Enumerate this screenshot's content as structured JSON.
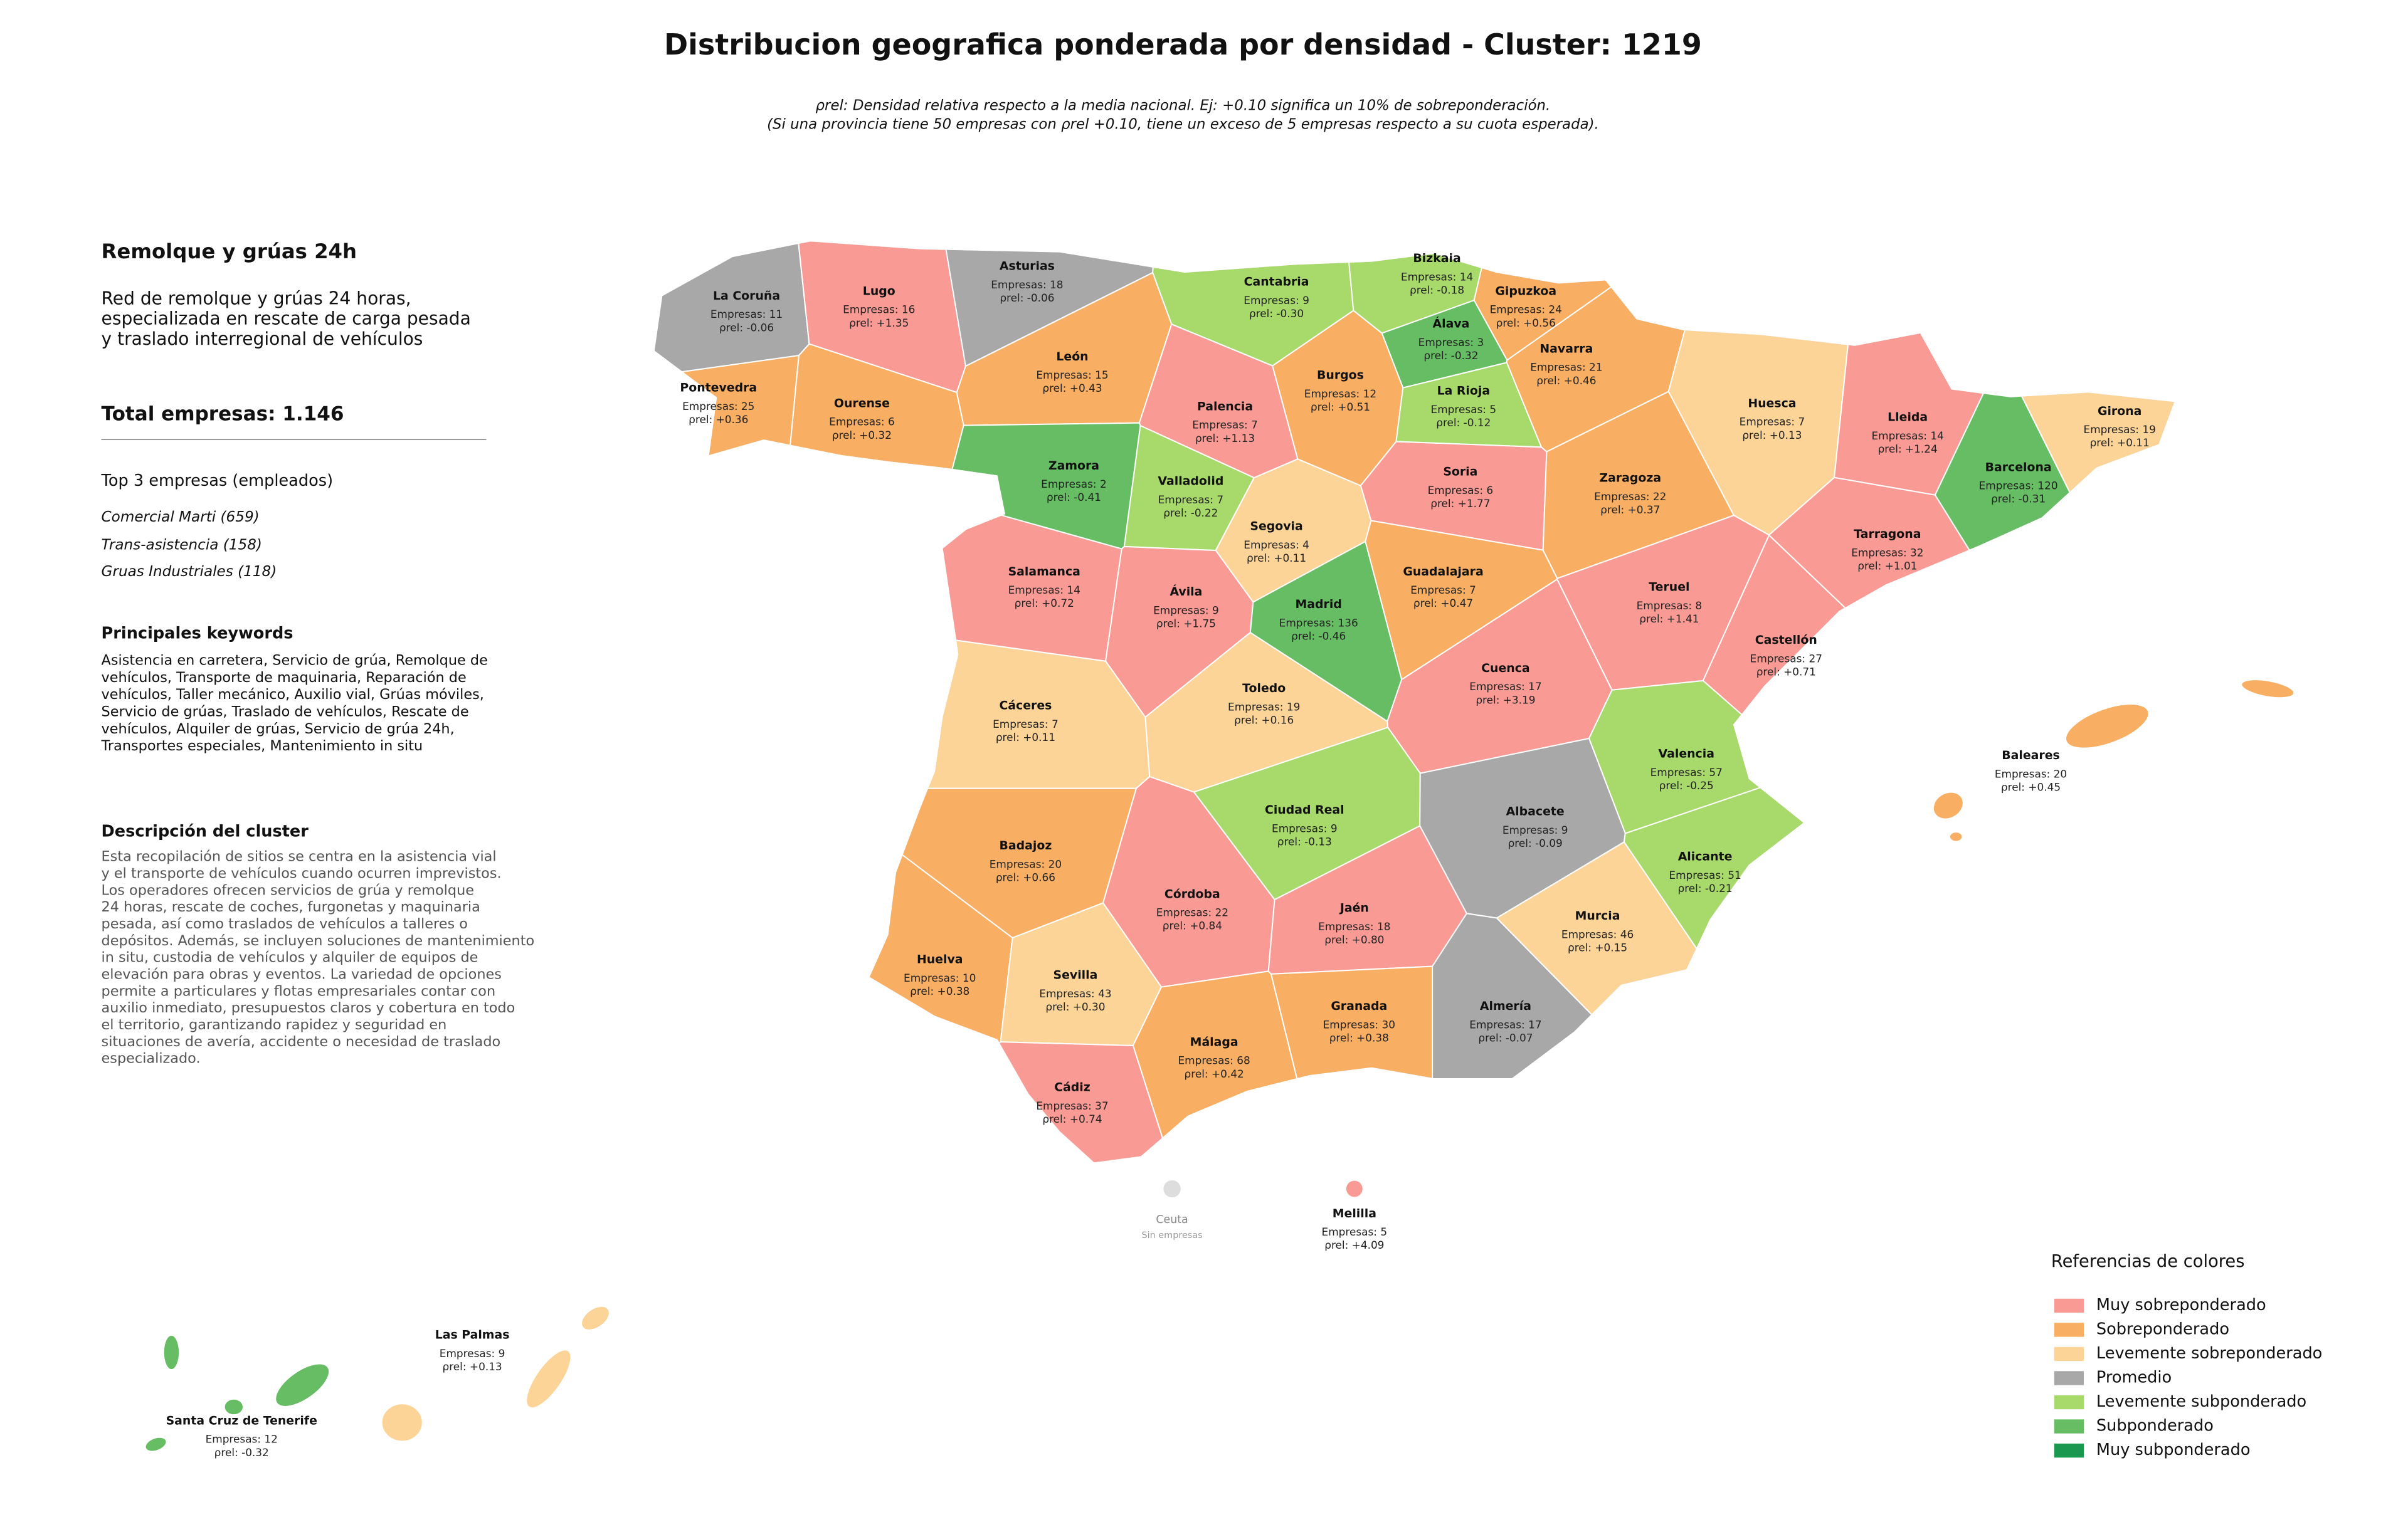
{
  "header": {
    "title": "Distribucion geografica ponderada por densidad - Cluster: 1219",
    "subtitle": [
      "ρrel: Densidad relativa respecto a la media nacional. Ej: +0.10 significa un 10% de sobreponderación.",
      "(Si una provincia tiene 50 empresas con ρrel +0.10, tiene un exceso de 5 empresas respecto a su cuota esperada)."
    ]
  },
  "panel": {
    "title": "Remolque y grúas 24h",
    "summary": [
      "Red de remolque y grúas 24 horas,",
      "especializada en rescate de carga pesada",
      "y traslado interregional de vehículos"
    ],
    "total": "Total empresas: 1.146",
    "top_heading": "Top 3 empresas (empleados)",
    "top": [
      "Comercial Marti (659)",
      "Trans-asistencia (158)",
      "Gruas Industriales (118)"
    ],
    "keywords_heading": "Principales keywords",
    "keywords": [
      "Asistencia en carretera, Servicio de grúa, Remolque de",
      "vehículos, Transporte de maquinaria, Reparación de",
      "vehículos, Taller mecánico, Auxilio vial, Grúas móviles,",
      "Servicio de grúas, Traslado de vehículos, Rescate de",
      "vehículos, Alquiler de grúas, Servicio de grúa 24h,",
      "Transportes especiales, Mantenimiento in situ"
    ],
    "description_heading": "Descripción del cluster",
    "description": [
      "Esta recopilación de sitios se centra en la asistencia vial",
      "y el transporte de vehículos cuando ocurren imprevistos.",
      "Los operadores ofrecen servicios de grúa y remolque",
      "24 horas, rescate de coches, furgonetas y maquinaria",
      "pesada, así como traslados de vehículos a talleres o",
      "depósitos. Además, se incluyen soluciones de mantenimiento",
      "in situ, custodia de vehículos y alquiler de equipos de",
      "elevación para obras y eventos. La variedad de opciones",
      "permite a particulares y flotas empresariales contar con",
      "auxilio inmediato, presupuestos claros y cobertura en todo",
      "el territorio, garantizando rapidez y seguridad en",
      "situaciones de avería, accidente o necesidad de traslado",
      "especializado."
    ]
  },
  "map": {
    "provinces": [
      {
        "name": "La Coruña",
        "companies": "Empresas: 11",
        "density": "ρrel: -0.06",
        "color": "#a8a8a8"
      },
      {
        "name": "Lugo",
        "companies": "Empresas: 16",
        "density": "ρrel: +1.35",
        "color": "#f99a94"
      },
      {
        "name": "Asturias",
        "companies": "Empresas: 18",
        "density": "ρrel: -0.06",
        "color": "#a8a8a8"
      },
      {
        "name": "Cantabria",
        "companies": "Empresas: 9",
        "density": "ρrel: -0.30",
        "color": "#a8d96b"
      },
      {
        "name": "Bizkaia",
        "companies": "Empresas: 14",
        "density": "ρrel: -0.18",
        "color": "#a8d96b"
      },
      {
        "name": "Gipuzkoa",
        "companies": "Empresas: 24",
        "density": "ρrel: +0.56",
        "color": "#f8ae63"
      },
      {
        "name": "Álava",
        "companies": "Empresas: 3",
        "density": "ρrel: -0.32",
        "color": "#66bd63"
      },
      {
        "name": "Navarra",
        "companies": "Empresas: 21",
        "density": "ρrel: +0.46",
        "color": "#f8ae63"
      },
      {
        "name": "Pontevedra",
        "companies": "Empresas: 25",
        "density": "ρrel: +0.36",
        "color": "#f8ae63"
      },
      {
        "name": "Ourense",
        "companies": "Empresas: 6",
        "density": "ρrel: +0.32",
        "color": "#f8ae63"
      },
      {
        "name": "León",
        "companies": "Empresas: 15",
        "density": "ρrel: +0.43",
        "color": "#f8ae63"
      },
      {
        "name": "Palencia",
        "companies": "Empresas: 7",
        "density": "ρrel: +1.13",
        "color": "#f99a94"
      },
      {
        "name": "Burgos",
        "companies": "Empresas: 12",
        "density": "ρrel: +0.51",
        "color": "#f8ae63"
      },
      {
        "name": "La Rioja",
        "companies": "Empresas: 5",
        "density": "ρrel: -0.12",
        "color": "#a8d96b"
      },
      {
        "name": "Huesca",
        "companies": "Empresas: 7",
        "density": "ρrel: +0.13",
        "color": "#fdd498"
      },
      {
        "name": "Lleida",
        "companies": "Empresas: 14",
        "density": "ρrel: +1.24",
        "color": "#f99a94"
      },
      {
        "name": "Girona",
        "companies": "Empresas: 19",
        "density": "ρrel: +0.11",
        "color": "#fdd498"
      },
      {
        "name": "Barcelona",
        "companies": "Empresas: 120",
        "density": "ρrel: -0.31",
        "color": "#66bd63"
      },
      {
        "name": "Zamora",
        "companies": "Empresas: 2",
        "density": "ρrel: -0.41",
        "color": "#66bd63"
      },
      {
        "name": "Valladolid",
        "companies": "Empresas: 7",
        "density": "ρrel: -0.22",
        "color": "#a8d96b"
      },
      {
        "name": "Soria",
        "companies": "Empresas: 6",
        "density": "ρrel: +1.77",
        "color": "#f99a94"
      },
      {
        "name": "Zaragoza",
        "companies": "Empresas: 22",
        "density": "ρrel: +0.37",
        "color": "#f8ae63"
      },
      {
        "name": "Tarragona",
        "companies": "Empresas: 32",
        "density": "ρrel: +1.01",
        "color": "#f99a94"
      },
      {
        "name": "Segovia",
        "companies": "Empresas: 4",
        "density": "ρrel: +0.11",
        "color": "#fdd498"
      },
      {
        "name": "Salamanca",
        "companies": "Empresas: 14",
        "density": "ρrel: +0.72",
        "color": "#f99a94"
      },
      {
        "name": "Guadalajara",
        "companies": "Empresas: 7",
        "density": "ρrel: +0.47",
        "color": "#f8ae63"
      },
      {
        "name": "Ávila",
        "companies": "Empresas: 9",
        "density": "ρrel: +1.75",
        "color": "#f99a94"
      },
      {
        "name": "Madrid",
        "companies": "Empresas: 136",
        "density": "ρrel: -0.46",
        "color": "#66bd63"
      },
      {
        "name": "Teruel",
        "companies": "Empresas: 8",
        "density": "ρrel: +1.41",
        "color": "#f99a94"
      },
      {
        "name": "Castellón",
        "companies": "Empresas: 27",
        "density": "ρrel: +0.71",
        "color": "#f99a94"
      },
      {
        "name": "Cuenca",
        "companies": "Empresas: 17",
        "density": "ρrel: +3.19",
        "color": "#f99a94"
      },
      {
        "name": "Cáceres",
        "companies": "Empresas: 7",
        "density": "ρrel: +0.11",
        "color": "#fdd498"
      },
      {
        "name": "Toledo",
        "companies": "Empresas: 19",
        "density": "ρrel: +0.16",
        "color": "#fdd498"
      },
      {
        "name": "Valencia",
        "companies": "Empresas: 57",
        "density": "ρrel: -0.25",
        "color": "#a8d96b"
      },
      {
        "name": "Ciudad Real",
        "companies": "Empresas: 9",
        "density": "ρrel: -0.13",
        "color": "#a8d96b"
      },
      {
        "name": "Albacete",
        "companies": "Empresas: 9",
        "density": "ρrel: -0.09",
        "color": "#a8a8a8"
      },
      {
        "name": "Badajoz",
        "companies": "Empresas: 20",
        "density": "ρrel: +0.66",
        "color": "#f8ae63"
      },
      {
        "name": "Alicante",
        "companies": "Empresas: 51",
        "density": "ρrel: -0.21",
        "color": "#a8d96b"
      },
      {
        "name": "Córdoba",
        "companies": "Empresas: 22",
        "density": "ρrel: +0.84",
        "color": "#f99a94"
      },
      {
        "name": "Jaén",
        "companies": "Empresas: 18",
        "density": "ρrel: +0.80",
        "color": "#f99a94"
      },
      {
        "name": "Murcia",
        "companies": "Empresas: 46",
        "density": "ρrel: +0.15",
        "color": "#fdd498"
      },
      {
        "name": "Huelva",
        "companies": "Empresas: 10",
        "density": "ρrel: +0.38",
        "color": "#f8ae63"
      },
      {
        "name": "Sevilla",
        "companies": "Empresas: 43",
        "density": "ρrel: +0.30",
        "color": "#fdd498"
      },
      {
        "name": "Granada",
        "companies": "Empresas: 30",
        "density": "ρrel: +0.38",
        "color": "#f8ae63"
      },
      {
        "name": "Almería",
        "companies": "Empresas: 17",
        "density": "ρrel: -0.07",
        "color": "#a8a8a8"
      },
      {
        "name": "Málaga",
        "companies": "Empresas: 68",
        "density": "ρrel: +0.42",
        "color": "#f8ae63"
      },
      {
        "name": "Cádiz",
        "companies": "Empresas: 37",
        "density": "ρrel: +0.74",
        "color": "#f99a94"
      },
      {
        "name": "Baleares",
        "companies": "Empresas: 20",
        "density": "ρrel: +0.45",
        "color": "#f8ae63"
      },
      {
        "name": "Las Palmas",
        "companies": "Empresas: 9",
        "density": "ρrel: +0.13",
        "color": "#fdd498"
      },
      {
        "name": "Santa Cruz de Tenerife",
        "companies": "Empresas: 12",
        "density": "ρrel: -0.32",
        "color": "#66bd63"
      },
      {
        "name": "Melilla",
        "companies": "Empresas: 5",
        "density": "ρrel: +4.09",
        "color": "#f99a94"
      }
    ],
    "ceuta": {
      "name": "Ceuta",
      "note": "Sin empresas"
    }
  },
  "legend": {
    "title": "Referencias de colores",
    "items": [
      {
        "label": "Muy sobreponderado",
        "color": "#f99a94"
      },
      {
        "label": "Sobreponderado",
        "color": "#f8ae63"
      },
      {
        "label": "Levemente sobreponderado",
        "color": "#fdd498"
      },
      {
        "label": "Promedio",
        "color": "#a8a8a8"
      },
      {
        "label": "Levemente subponderado",
        "color": "#a8d96b"
      },
      {
        "label": "Subponderado",
        "color": "#66bd63"
      },
      {
        "label": "Muy subponderado",
        "color": "#1a9850"
      }
    ]
  }
}
